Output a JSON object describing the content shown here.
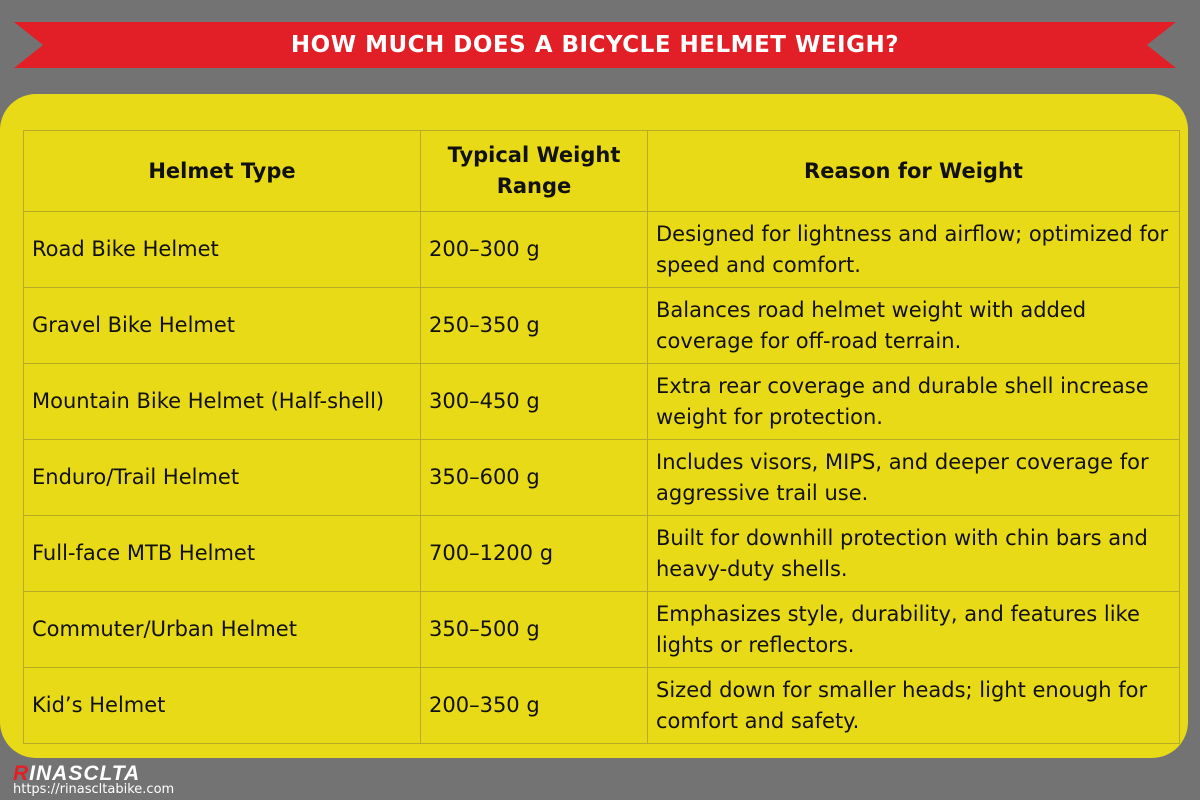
{
  "title": "HOW MUCH DOES A BICYCLE HELMET WEIGH?",
  "colors": {
    "background": "#737373",
    "banner": "#e21f26",
    "panel": "#e8da17"
  },
  "table": {
    "headers": [
      "Helmet Type",
      "Typical Weight Range",
      "Reason for Weight"
    ],
    "rows": [
      [
        "Road Bike Helmet",
        "200–300 g",
        "Designed for lightness and airflow; optimized for speed and comfort."
      ],
      [
        "Gravel Bike Helmet",
        "250–350 g",
        "Balances road helmet weight with added coverage for off-road terrain."
      ],
      [
        "Mountain Bike Helmet (Half-shell)",
        "300–450 g",
        "Extra rear coverage and durable shell increase weight for protection."
      ],
      [
        "Enduro/Trail Helmet",
        "350–600 g",
        "Includes visors, MIPS, and deeper coverage for aggressive trail use."
      ],
      [
        "Full-face MTB Helmet",
        "700–1200 g",
        "Built for downhill protection with chin bars and heavy-duty shells."
      ],
      [
        "Commuter/Urban Helmet",
        "350–500 g",
        "Emphasizes style, durability, and features like lights or reflectors."
      ],
      [
        "Kid’s Helmet",
        "200–350 g",
        "Sized down for smaller heads; light enough for comfort and safety."
      ]
    ]
  },
  "footer": {
    "logo_first": "R",
    "logo_rest": "INASCLTA",
    "url": "https://rinascltabike.com"
  }
}
